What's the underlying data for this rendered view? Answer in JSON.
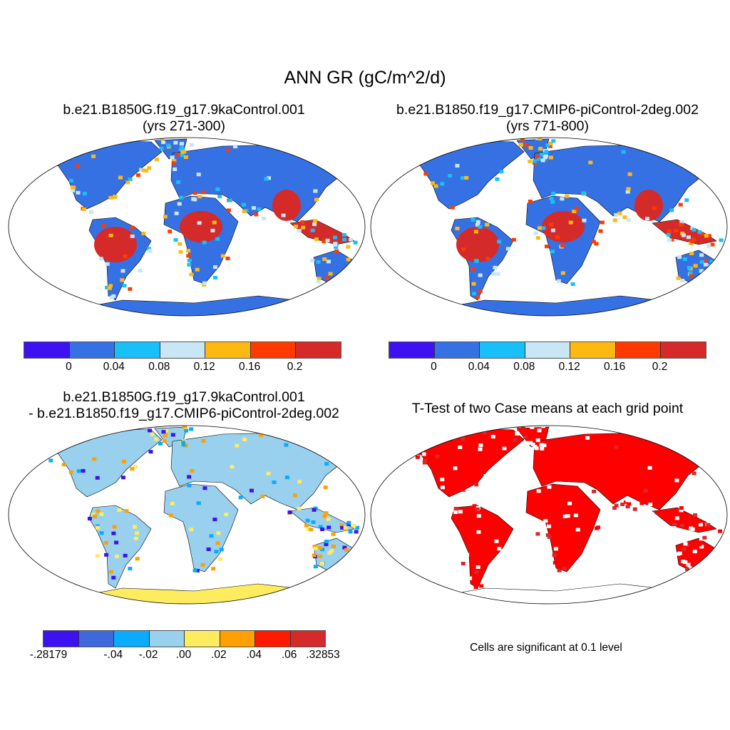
{
  "title": "ANN GR (gC/m^2/d)",
  "panels": [
    {
      "title": "b.e21.B1850G.f19_g17.9kaControl.001",
      "subtitle": "(yrs 271-300)"
    },
    {
      "title": "b.e21.B1850.f19_g17.CMIP6-piControl-2deg.002",
      "subtitle": "(yrs 771-800)"
    },
    {
      "title": "b.e21.B1850G.f19_g17.9kaControl.001",
      "subtitle": "- b.e21.B1850.f19_g17.CMIP6-piControl-2deg.002"
    },
    {
      "title": "T-Test of two Case means at each grid point",
      "note": "Cells are significant at 0.1 level",
      "significant_color": "#ff0000"
    }
  ],
  "colorbar_cases": {
    "colors": [
      "#3d12f0",
      "#3671e4",
      "#18bff8",
      "#c8e6f6",
      "#fdb912",
      "#ff3a00",
      "#d42a2a"
    ],
    "labels": [
      "0",
      "0.04",
      "0.08",
      "0.12",
      "0.16",
      "0.2"
    ]
  },
  "colorbar_diff": {
    "colors": [
      "#3d12f0",
      "#3e68dc",
      "#0aabff",
      "#98d0ee",
      "#fdec60",
      "#ffa000",
      "#ff1a00",
      "#d42a2a"
    ],
    "labels": [
      "-.28179",
      "-.04",
      "-.02",
      ".00",
      ".02",
      ".04",
      ".06",
      ".32853"
    ]
  }
}
